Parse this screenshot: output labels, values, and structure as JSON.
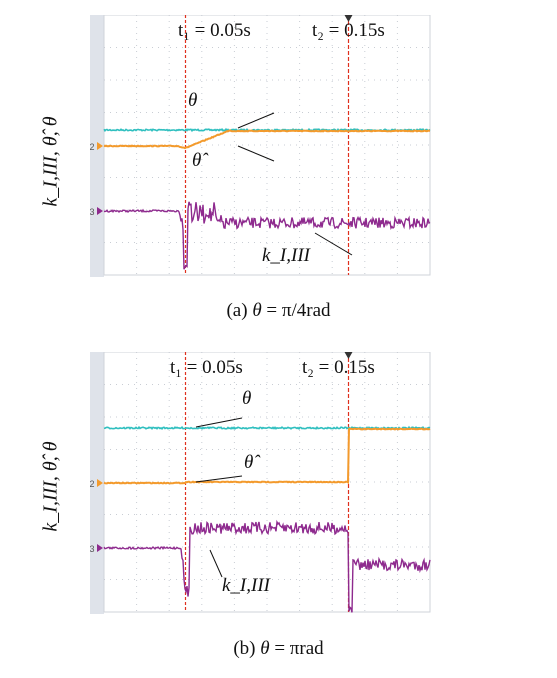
{
  "panels": [
    {
      "caption_prefix": "(a)",
      "caption_theta": "θ",
      "caption_rest": " = π/4rad",
      "t1_label": "t₁ = 0.05s",
      "t2_label": "t₂ = 0.15s",
      "theta_label": "θ",
      "theta_hat_label": "θ̂",
      "k_label": "k_I,III",
      "y_axis_label": "k_I,III, θ̂, θ",
      "channel_markers": [
        "2",
        "3"
      ]
    },
    {
      "caption_prefix": "(b)",
      "caption_theta": "θ",
      "caption_rest": " = πrad",
      "t1_label": "t₁ = 0.05s",
      "t2_label": "t₂ = 0.15s",
      "theta_label": "θ",
      "theta_hat_label": "θ̂",
      "k_label": "k_I,III",
      "y_axis_label": "k_I,III, θ̂, θ",
      "channel_markers": [
        "2",
        "3"
      ]
    }
  ],
  "chart_data": [
    {
      "type": "line",
      "title": "(a) θ = π/4rad",
      "x_unit": "s",
      "xlim": [
        0,
        0.2
      ],
      "markers": [
        {
          "label": "t1",
          "x": 0.05
        },
        {
          "label": "t2",
          "x": 0.15
        }
      ],
      "series": [
        {
          "name": "θ",
          "color": "#2fbfbf",
          "x": [
            0,
            0.2
          ],
          "y": [
            0.785,
            0.785
          ]
        },
        {
          "name": "θ̂",
          "color": "#f39a2c",
          "x": [
            0,
            0.04,
            0.05,
            0.06,
            0.065,
            0.08,
            0.2
          ],
          "y": [
            0.64,
            0.64,
            0.62,
            0.7,
            0.76,
            0.785,
            0.785
          ]
        },
        {
          "name": "k_I,III",
          "color": "#8e2a8e",
          "x": [
            0,
            0.048,
            0.05,
            0.052,
            0.055,
            0.07,
            0.2
          ],
          "y": [
            1.0,
            1.0,
            0.4,
            1.0,
            0.9,
            0.95,
            0.95
          ]
        }
      ]
    },
    {
      "type": "line",
      "title": "(b) θ = πrad",
      "x_unit": "s",
      "xlim": [
        0,
        0.2
      ],
      "markers": [
        {
          "label": "t1",
          "x": 0.05
        },
        {
          "label": "t2",
          "x": 0.15
        }
      ],
      "series": [
        {
          "name": "θ",
          "color": "#2fbfbf",
          "x": [
            0,
            0.2
          ],
          "y": [
            3.14,
            3.14
          ]
        },
        {
          "name": "θ̂",
          "color": "#f39a2c",
          "x": [
            0,
            0.05,
            0.15,
            0.15,
            0.2
          ],
          "y": [
            1.58,
            1.62,
            1.62,
            3.14,
            3.14
          ]
        },
        {
          "name": "k_I,III",
          "color": "#8e2a8e",
          "x": [
            0,
            0.048,
            0.05,
            0.053,
            0.15,
            0.151,
            0.153,
            0.2
          ],
          "y": [
            1.0,
            1.0,
            0.4,
            1.3,
            1.3,
            0.3,
            0.95,
            0.95
          ]
        }
      ]
    }
  ]
}
